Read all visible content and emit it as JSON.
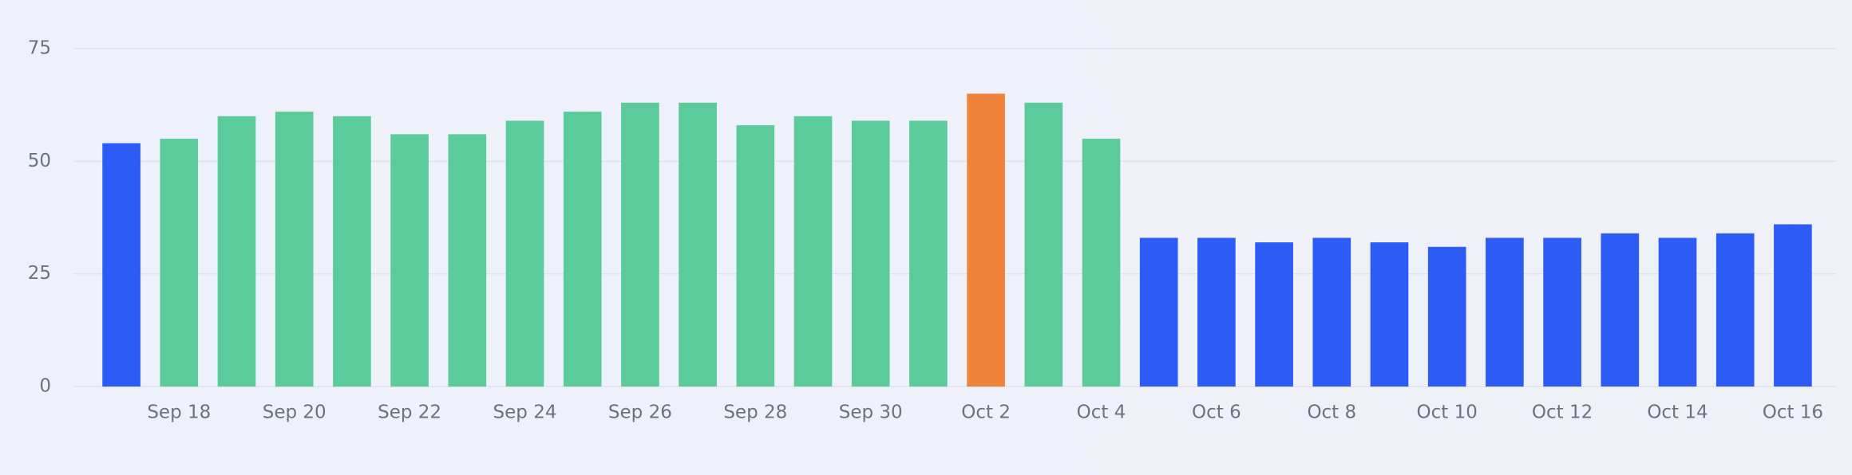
{
  "chart_data": {
    "type": "bar",
    "categories": [
      null,
      "Sep 18",
      null,
      "Sep 20",
      null,
      "Sep 22",
      null,
      "Sep 24",
      null,
      "Sep 26",
      null,
      "Sep 28",
      null,
      "Sep 30",
      null,
      "Oct 2",
      null,
      "Oct 4",
      null,
      "Oct 6",
      null,
      "Oct 8",
      null,
      "Oct 10",
      null,
      "Oct 12",
      null,
      "Oct 14",
      null,
      "Oct 16"
    ],
    "values": [
      54,
      55,
      60,
      61,
      60,
      56,
      56,
      59,
      61,
      63,
      63,
      58,
      60,
      59,
      59,
      65,
      63,
      55,
      33,
      33,
      32,
      33,
      32,
      31,
      33,
      33,
      34,
      33,
      34,
      36
    ],
    "colors": [
      "#2d5bf5",
      "#5ccb9c",
      "#5ccb9c",
      "#5ccb9c",
      "#5ccb9c",
      "#5ccb9c",
      "#5ccb9c",
      "#5ccb9c",
      "#5ccb9c",
      "#5ccb9c",
      "#5ccb9c",
      "#5ccb9c",
      "#5ccb9c",
      "#5ccb9c",
      "#5ccb9c",
      "#ef833a",
      "#5ccb9c",
      "#5ccb9c",
      "#2d5bf5",
      "#2d5bf5",
      "#2d5bf5",
      "#2d5bf5",
      "#2d5bf5",
      "#2d5bf5",
      "#2d5bf5",
      "#2d5bf5",
      "#2d5bf5",
      "#2d5bf5",
      "#2d5bf5",
      "#2d5bf5"
    ],
    "ylim": [
      0,
      75
    ],
    "yticks": [
      0,
      25,
      50,
      75
    ],
    "grid": true
  }
}
